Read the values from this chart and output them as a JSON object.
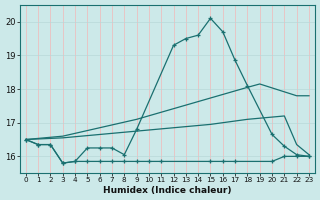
{
  "xlabel": "Humidex (Indice chaleur)",
  "bg_color": "#cce9e9",
  "grid_color_v": "#f2b8b8",
  "grid_color_h": "#b8d8d8",
  "line_color": "#1a7070",
  "xlim": [
    -0.5,
    23.5
  ],
  "ylim": [
    15.5,
    20.5
  ],
  "yticks": [
    16,
    17,
    18,
    19,
    20
  ],
  "xticks": [
    0,
    1,
    2,
    3,
    4,
    5,
    6,
    7,
    8,
    9,
    10,
    11,
    12,
    13,
    14,
    15,
    16,
    17,
    18,
    19,
    20,
    21,
    22,
    23
  ],
  "series_peak": {
    "x": [
      0,
      1,
      2,
      3,
      4,
      5,
      6,
      7,
      8,
      9,
      12,
      13,
      14,
      15,
      16,
      17,
      18,
      20,
      21,
      22,
      23
    ],
    "y": [
      16.5,
      16.35,
      16.35,
      15.8,
      15.85,
      16.25,
      16.25,
      16.25,
      16.05,
      16.8,
      19.3,
      19.5,
      19.6,
      20.1,
      19.7,
      18.85,
      18.1,
      16.65,
      16.3,
      16.05,
      16.0
    ]
  },
  "series_upper": {
    "x": [
      0,
      3,
      9,
      18,
      19,
      22,
      23
    ],
    "y": [
      16.5,
      16.6,
      17.1,
      18.05,
      18.15,
      17.8,
      17.8
    ]
  },
  "series_lower": {
    "x": [
      0,
      3,
      9,
      15,
      18,
      21,
      22,
      23
    ],
    "y": [
      16.5,
      16.55,
      16.75,
      16.95,
      17.1,
      17.2,
      16.35,
      16.05
    ]
  },
  "series_min": {
    "x": [
      0,
      1,
      2,
      3,
      4,
      5,
      6,
      7,
      8,
      9,
      10,
      11,
      15,
      16,
      17,
      20,
      21,
      22,
      23
    ],
    "y": [
      16.5,
      16.35,
      16.35,
      15.8,
      15.85,
      15.85,
      15.85,
      15.85,
      15.85,
      15.85,
      15.85,
      15.85,
      15.85,
      15.85,
      15.85,
      15.85,
      16.0,
      16.0,
      16.0
    ]
  }
}
